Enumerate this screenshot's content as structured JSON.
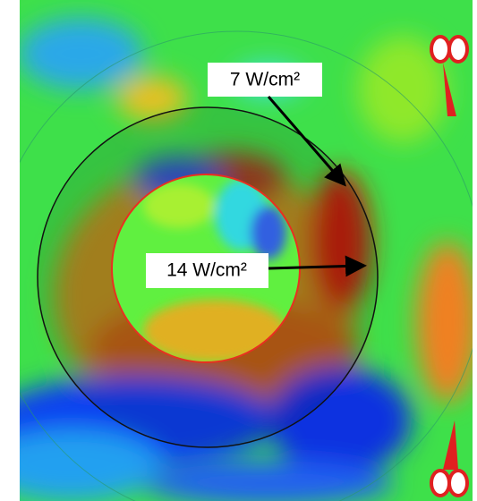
{
  "annotations": [
    {
      "label": "7 W/cm²"
    },
    {
      "label": "14 W/cm²"
    }
  ]
}
